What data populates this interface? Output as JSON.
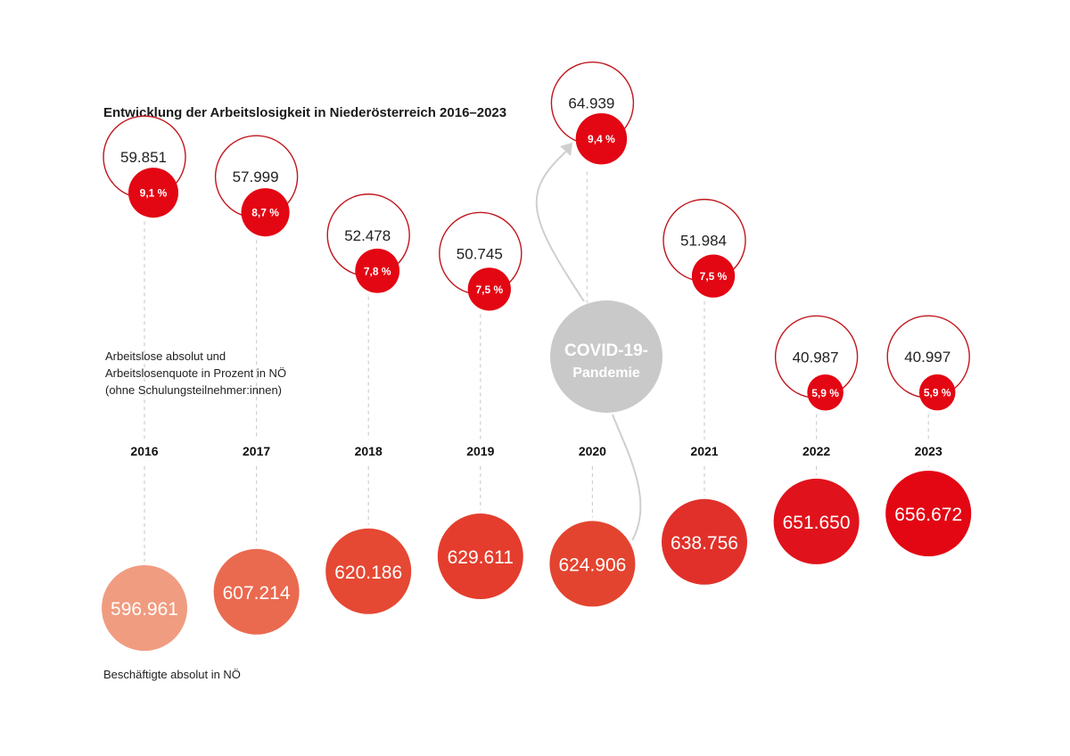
{
  "chart_data": {
    "type": "scatter",
    "title": "Entwicklung der Arbeitslosigkeit in Niederösterreich 2016–2023",
    "unemployment_label_lines": [
      "Arbeitslose absolut und",
      "Arbeitslosenquote in Prozent in NÖ",
      "(ohne Schulungsteilnehmer:innen)"
    ],
    "employment_label": "Beschäftigte absolut in NÖ",
    "covid_label_lines": [
      "COVID-19-",
      "Pandemie"
    ],
    "categories": [
      "2016",
      "2017",
      "2018",
      "2019",
      "2020",
      "2021",
      "2022",
      "2023"
    ],
    "series": [
      {
        "name": "Arbeitslose absolut",
        "values": [
          59851,
          57999,
          52478,
          50745,
          64939,
          51984,
          40987,
          40997
        ],
        "labels": [
          "59.851",
          "57.999",
          "52.478",
          "50.745",
          "64.939",
          "51.984",
          "40.987",
          "40.997"
        ]
      },
      {
        "name": "Arbeitslosenquote in Prozent",
        "values": [
          9.1,
          8.7,
          7.8,
          7.5,
          9.4,
          7.5,
          5.9,
          5.9
        ],
        "labels": [
          "9,1 %",
          "8,7 %",
          "7,8 %",
          "7,5 %",
          "9,4 %",
          "7,5 %",
          "5,9 %",
          "5,9 %"
        ]
      },
      {
        "name": "Beschäftigte absolut",
        "values": [
          596961,
          607214,
          620186,
          629611,
          624906,
          638756,
          651650,
          656672
        ],
        "labels": [
          "596.961",
          "607.214",
          "620.186",
          "629.611",
          "624.906",
          "638.756",
          "651.650",
          "656.672"
        ]
      }
    ],
    "colors": {
      "unemp_ring": "#c0161d",
      "rate_fill": "#e30613",
      "covid_fill": "#c9c9c9",
      "connector": "#cfcfcf",
      "emp_gradient": [
        "#f09c80",
        "#ea6a50",
        "#e54833",
        "#e43d2d",
        "#e3442f",
        "#e1302a",
        "#e0121b",
        "#e30613"
      ]
    }
  }
}
